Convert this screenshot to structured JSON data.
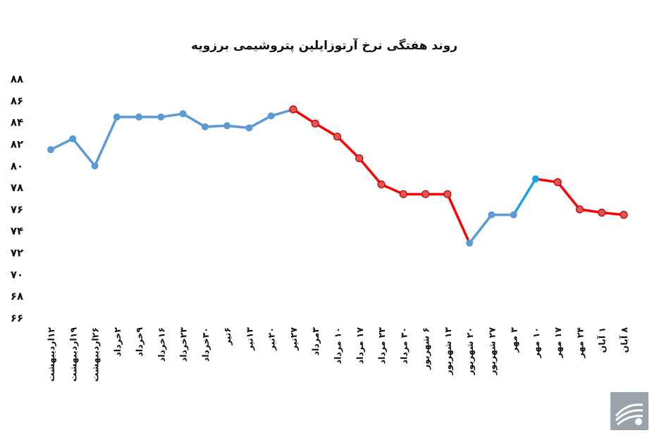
{
  "chart_data": {
    "type": "line",
    "title": "روند هفتگی نرخ آرتوزایلین پتروشیمی برزویه",
    "xlabel": "",
    "ylabel": "",
    "ylim": [
      66,
      88
    ],
    "yticks": [
      66,
      68,
      70,
      72,
      74,
      76,
      78,
      80,
      82,
      84,
      86,
      88
    ],
    "ytick_labels": [
      "۶۶",
      "۶۸",
      "۷۰",
      "۷۲",
      "۷۴",
      "۷۶",
      "۷۸",
      "۸۰",
      "۸۲",
      "۸۴",
      "۸۶",
      "۸۸"
    ],
    "grid": false,
    "legend": "none",
    "categories": [
      "۱۲اردیبهشت",
      "۱۹اردیبهشت",
      "۲۶اردیبهشت",
      "۲خرداد",
      "۹خرداد",
      "۱۶خرداد",
      "۲۳خرداد",
      "۳۰خرداد",
      "۶تیر",
      "۱۳تیر",
      "۲۰تیر",
      "۲۷تیر",
      "۳مرداد",
      "۱۰ مرداد",
      "۱۷ مرداد",
      "۲۳ مرداد",
      "۳۰ مرداد",
      "۶ شهریور",
      "۱۳ شهریور",
      "۲۰ شهریور",
      "۲۷ شهریور",
      "۳ مهر",
      "۱۰ مهر",
      "۱۷ مهر",
      "۲۴ مهر",
      "۱ آبان",
      "۸ آبان"
    ],
    "values": [
      81.5,
      82.5,
      80.0,
      84.5,
      84.5,
      84.5,
      84.8,
      83.6,
      83.7,
      83.5,
      84.6,
      85.2,
      83.9,
      82.7,
      80.7,
      78.3,
      77.4,
      77.4,
      77.4,
      72.9,
      75.5,
      75.5,
      78.8,
      78.5,
      76.0,
      75.7,
      75.5
    ],
    "segment_colors": [
      "#5b9bd5",
      "#5b9bd5",
      "#5b9bd5",
      "#5b9bd5",
      "#5b9bd5",
      "#5b9bd5",
      "#5b9bd5",
      "#5b9bd5",
      "#5b9bd5",
      "#5b9bd5",
      "#5b9bd5",
      "#ff0000",
      "#ff0000",
      "#ff0000",
      "#ff0000",
      "#ff0000",
      "#ff0000",
      "#ff0000",
      "#ff0000",
      "#5b9bd5",
      "#5b9bd5",
      "#1ba1e2",
      "#ff0000",
      "#ff0000",
      "#ff0000",
      "#ff0000"
    ],
    "point_colors": [
      "#5b9bd5",
      "#5b9bd5",
      "#5b9bd5",
      "#5b9bd5",
      "#5b9bd5",
      "#5b9bd5",
      "#5b9bd5",
      "#5b9bd5",
      "#5b9bd5",
      "#5b9bd5",
      "#5b9bd5",
      "#ff0000",
      "#ff0000",
      "#ff0000",
      "#ff0000",
      "#ff0000",
      "#ff0000",
      "#ff0000",
      "#ff0000",
      "#5b9bd5",
      "#5b9bd5",
      "#5b9bd5",
      "#1ba1e2",
      "#ff0000",
      "#ff0000",
      "#ff0000",
      "#ff0000"
    ],
    "colors": {
      "rising": "#5b9bd5",
      "falling": "#ff0000",
      "highlight": "#1ba1e2"
    }
  },
  "logo": {
    "icon": "company-logo-icon",
    "color": "#9aa3aa"
  }
}
